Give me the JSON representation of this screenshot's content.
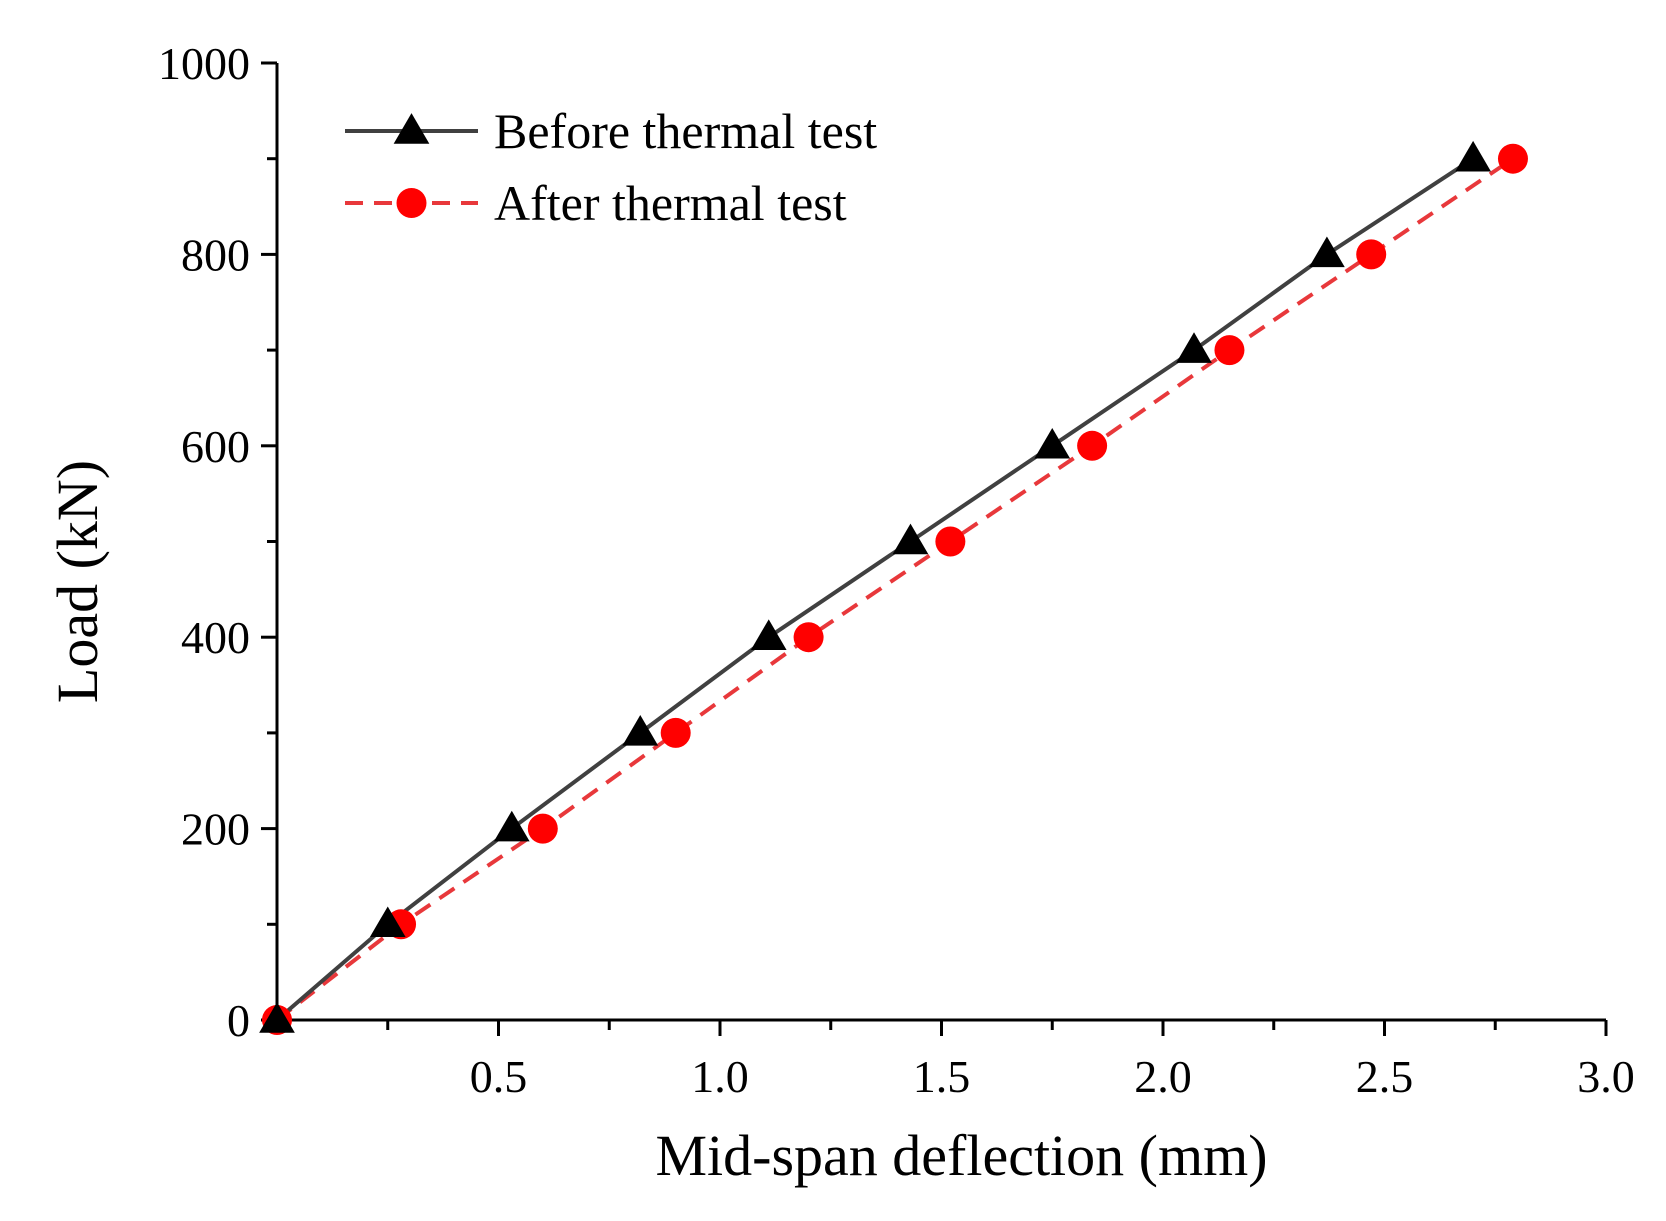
{
  "chart_data": {
    "type": "line",
    "title": "",
    "xlabel": "Mid-span deflection (mm)",
    "ylabel": "Load (kN)",
    "xlim": [
      0,
      3.0
    ],
    "ylim": [
      0,
      1000
    ],
    "x_ticks": [
      0.5,
      1.0,
      1.5,
      2.0,
      2.5,
      3.0
    ],
    "x_tick_labels": [
      "0.5",
      "1.0",
      "1.5",
      "2.0",
      "2.5",
      "3.0"
    ],
    "x_minor_ticks": [
      0.25,
      0.75,
      1.25,
      1.75,
      2.25,
      2.75
    ],
    "y_ticks": [
      0,
      200,
      400,
      600,
      800,
      1000
    ],
    "y_tick_labels": [
      "0",
      "200",
      "400",
      "600",
      "800",
      "1000"
    ],
    "y_minor_ticks": [
      100,
      300,
      500,
      700,
      900
    ],
    "grid": false,
    "legend_position": "top-left",
    "series": [
      {
        "name": "Before thermal test",
        "color": "#404040",
        "marker": "triangle",
        "marker_color": "#000000",
        "line_style": "solid",
        "x": [
          0,
          0.25,
          0.53,
          0.82,
          1.11,
          1.43,
          1.75,
          2.07,
          2.37,
          2.7
        ],
        "y": [
          0,
          100,
          200,
          300,
          400,
          500,
          600,
          700,
          800,
          900
        ]
      },
      {
        "name": "After thermal test",
        "color": "#e8383b",
        "marker": "circle",
        "marker_color": "#ff0000",
        "line_style": "dashed",
        "x": [
          0,
          0.28,
          0.6,
          0.9,
          1.2,
          1.52,
          1.84,
          2.15,
          2.47,
          2.79
        ],
        "y": [
          0,
          100,
          200,
          300,
          400,
          500,
          600,
          700,
          800,
          900
        ]
      }
    ]
  }
}
